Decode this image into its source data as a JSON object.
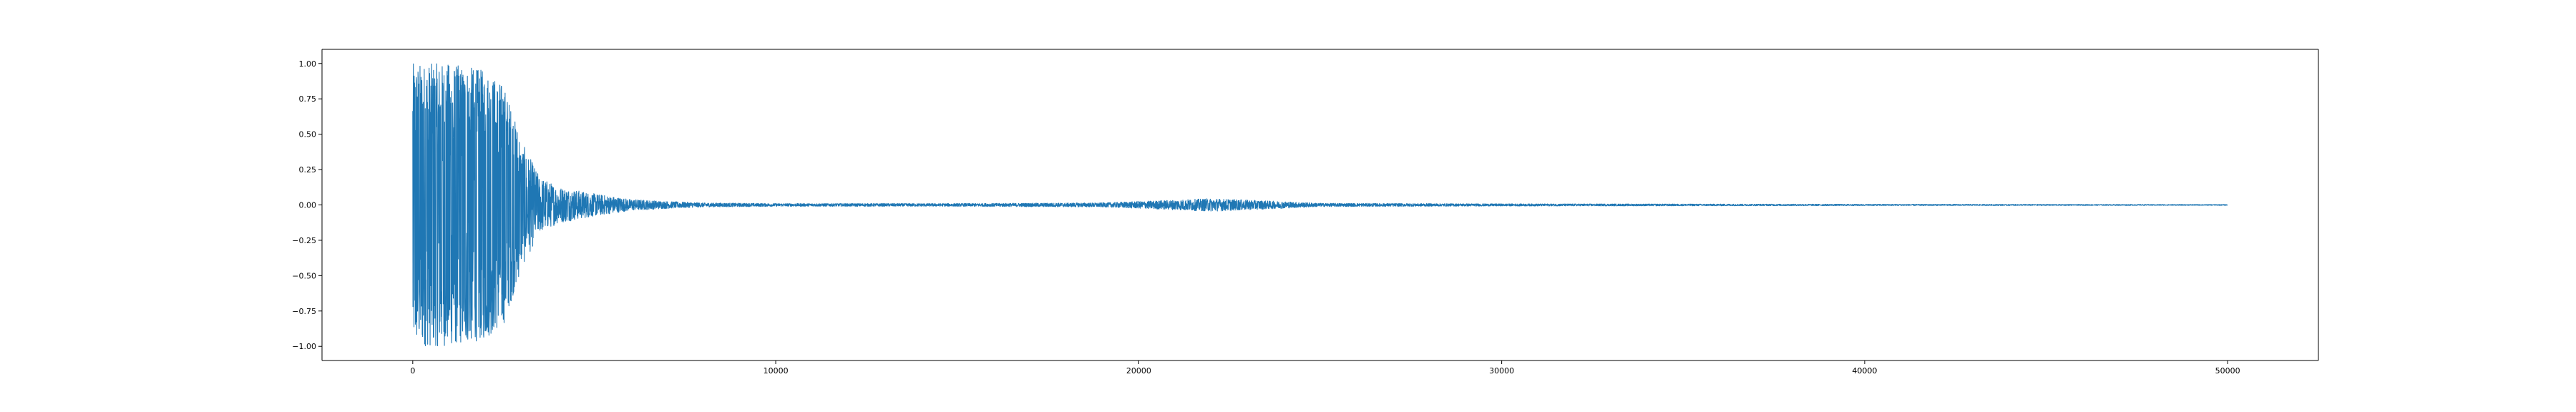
{
  "chart_data": {
    "type": "line",
    "title": "",
    "xlabel": "",
    "ylabel": "",
    "xlim": [
      -2500,
      52500
    ],
    "ylim": [
      -1.1,
      1.1
    ],
    "x_ticks": [
      {
        "value": 0,
        "label": "0"
      },
      {
        "value": 10000,
        "label": "10000"
      },
      {
        "value": 20000,
        "label": "20000"
      },
      {
        "value": 30000,
        "label": "30000"
      },
      {
        "value": 40000,
        "label": "40000"
      },
      {
        "value": 50000,
        "label": "50000"
      }
    ],
    "y_ticks": [
      {
        "value": 1.0,
        "label": "1.00"
      },
      {
        "value": 0.75,
        "label": "0.75"
      },
      {
        "value": 0.5,
        "label": "0.50"
      },
      {
        "value": 0.25,
        "label": "0.25"
      },
      {
        "value": 0.0,
        "label": "0.00"
      },
      {
        "value": -0.25,
        "label": "−0.25"
      },
      {
        "value": -0.5,
        "label": "−0.50"
      },
      {
        "value": -0.75,
        "label": "−0.75"
      },
      {
        "value": -1.0,
        "label": "−1.00"
      }
    ],
    "grid": false,
    "legend": "none",
    "series": [
      {
        "color": "#1f77b4",
        "x_start": 0,
        "x_end": 50000,
        "envelope_x": [
          0,
          500,
          1000,
          1500,
          2000,
          2500,
          3000,
          3500,
          4000,
          5000,
          6000,
          7000,
          8000,
          10000,
          15000,
          19000,
          21000,
          22000,
          23000,
          25000,
          30000,
          40000,
          50000
        ],
        "envelope_y": [
          1.0,
          1.0,
          1.0,
          0.98,
          0.95,
          0.85,
          0.45,
          0.2,
          0.13,
          0.08,
          0.04,
          0.025,
          0.015,
          0.01,
          0.01,
          0.015,
          0.035,
          0.045,
          0.035,
          0.012,
          0.008,
          0.005,
          0.003
        ]
      }
    ]
  }
}
